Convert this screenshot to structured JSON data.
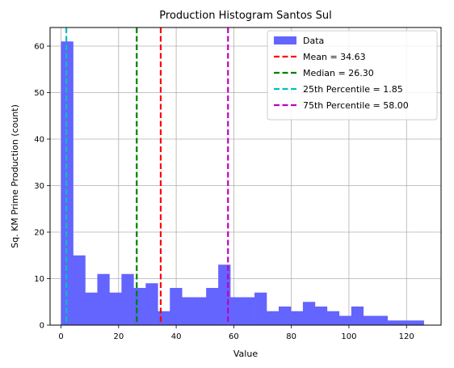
{
  "chart_data": {
    "type": "bar",
    "title": "Production Histogram Santos Sul",
    "xlabel": "Value",
    "ylabel": "Sq. KM Prime Production (count)",
    "xlim": [
      -3.8,
      132.0
    ],
    "ylim": [
      0,
      64
    ],
    "xticks": [
      0,
      20,
      40,
      60,
      80,
      100,
      120
    ],
    "yticks": [
      0,
      10,
      20,
      30,
      40,
      50,
      60
    ],
    "grid": true,
    "legend_position": "top-right",
    "bin_start": 0,
    "bin_width": 4.2,
    "counts": [
      61,
      15,
      7,
      11,
      7,
      11,
      8,
      9,
      3,
      8,
      6,
      6,
      8,
      13,
      6,
      6,
      7,
      3,
      4,
      3,
      5,
      4,
      3,
      2,
      4,
      2,
      2,
      1,
      1,
      1
    ],
    "bar_color": "#6464ff",
    "lines": [
      {
        "label": "Mean = 34.63",
        "value": 34.63,
        "color": "#ff0000"
      },
      {
        "label": "Median = 26.30",
        "value": 26.3,
        "color": "#008000"
      },
      {
        "label": "25th Percentile = 1.85",
        "value": 1.85,
        "color": "#00bfbf"
      },
      {
        "label": "75th Percentile = 58.00",
        "value": 58.0,
        "color": "#bf00bf"
      }
    ],
    "legend_data_label": "Data"
  }
}
